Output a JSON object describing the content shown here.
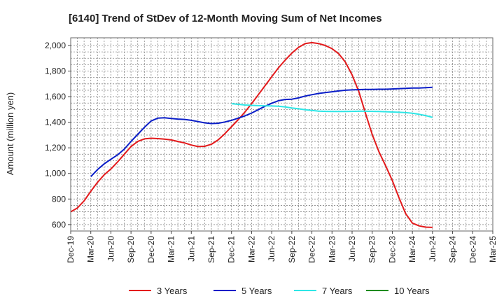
{
  "chart_data": {
    "type": "line",
    "title": "[6140]  Trend of StDev of 12-Month Moving Sum of Net Incomes",
    "ylabel": "Amount (million yen)",
    "xlabel": "",
    "ylim": [
      550,
      2060
    ],
    "y_ticks": [
      600,
      800,
      1000,
      1200,
      1400,
      1600,
      1800,
      2000
    ],
    "y_tick_labels": [
      "600",
      "800",
      "1,000",
      "1,200",
      "1,400",
      "1,600",
      "1,800",
      "2,000"
    ],
    "x_ticks": [
      "Dec-19",
      "Mar-20",
      "Jun-20",
      "Sep-20",
      "Dec-20",
      "Mar-21",
      "Jun-21",
      "Sep-21",
      "Dec-21",
      "Mar-22",
      "Jun-22",
      "Sep-22",
      "Dec-22",
      "Mar-23",
      "Jun-23",
      "Sep-23",
      "Dec-23",
      "Mar-24",
      "Jun-24",
      "Sep-24",
      "Dec-24",
      "Mar-25"
    ],
    "grid": true,
    "legend_position": "bottom",
    "series": [
      {
        "name": "3 Years",
        "color": "#e31a1c",
        "points": [
          [
            0,
            700
          ],
          [
            1,
            730
          ],
          [
            2,
            785
          ],
          [
            3,
            860
          ],
          [
            4,
            930
          ],
          [
            5,
            990
          ],
          [
            6,
            1035
          ],
          [
            7,
            1090
          ],
          [
            8,
            1150
          ],
          [
            9,
            1210
          ],
          [
            10,
            1250
          ],
          [
            11,
            1270
          ],
          [
            12,
            1275
          ],
          [
            13,
            1272
          ],
          [
            14,
            1268
          ],
          [
            15,
            1262
          ],
          [
            16,
            1250
          ],
          [
            17,
            1238
          ],
          [
            18,
            1222
          ],
          [
            19,
            1210
          ],
          [
            20,
            1212
          ],
          [
            21,
            1228
          ],
          [
            22,
            1262
          ],
          [
            23,
            1310
          ],
          [
            24,
            1365
          ],
          [
            25,
            1420
          ],
          [
            26,
            1480
          ],
          [
            27,
            1545
          ],
          [
            28,
            1615
          ],
          [
            29,
            1685
          ],
          [
            30,
            1755
          ],
          [
            31,
            1825
          ],
          [
            32,
            1885
          ],
          [
            33,
            1940
          ],
          [
            34,
            1985
          ],
          [
            35,
            2015
          ],
          [
            36,
            2022
          ],
          [
            37,
            2015
          ],
          [
            38,
            2000
          ],
          [
            39,
            1975
          ],
          [
            40,
            1935
          ],
          [
            41,
            1870
          ],
          [
            42,
            1770
          ],
          [
            43,
            1640
          ],
          [
            44,
            1470
          ],
          [
            45,
            1305
          ],
          [
            46,
            1170
          ],
          [
            47,
            1060
          ],
          [
            48,
            945
          ],
          [
            49,
            810
          ],
          [
            50,
            685
          ],
          [
            51,
            612
          ],
          [
            52,
            590
          ],
          [
            53,
            580
          ],
          [
            54,
            578
          ]
        ]
      },
      {
        "name": "5 Years",
        "color": "#0a1ec8",
        "points": [
          [
            3,
            975
          ],
          [
            4,
            1030
          ],
          [
            5,
            1075
          ],
          [
            6,
            1110
          ],
          [
            7,
            1145
          ],
          [
            8,
            1190
          ],
          [
            9,
            1250
          ],
          [
            10,
            1305
          ],
          [
            11,
            1360
          ],
          [
            12,
            1410
          ],
          [
            13,
            1432
          ],
          [
            14,
            1435
          ],
          [
            15,
            1430
          ],
          [
            16,
            1425
          ],
          [
            17,
            1422
          ],
          [
            18,
            1415
          ],
          [
            19,
            1405
          ],
          [
            20,
            1395
          ],
          [
            21,
            1390
          ],
          [
            22,
            1392
          ],
          [
            23,
            1402
          ],
          [
            24,
            1415
          ],
          [
            25,
            1432
          ],
          [
            26,
            1450
          ],
          [
            27,
            1472
          ],
          [
            28,
            1498
          ],
          [
            29,
            1525
          ],
          [
            30,
            1548
          ],
          [
            31,
            1568
          ],
          [
            32,
            1578
          ],
          [
            33,
            1580
          ],
          [
            34,
            1590
          ],
          [
            35,
            1605
          ],
          [
            36,
            1615
          ],
          [
            37,
            1625
          ],
          [
            38,
            1632
          ],
          [
            39,
            1638
          ],
          [
            40,
            1645
          ],
          [
            41,
            1650
          ],
          [
            42,
            1653
          ],
          [
            43,
            1655
          ],
          [
            44,
            1656
          ],
          [
            45,
            1657
          ],
          [
            46,
            1658
          ],
          [
            47,
            1658
          ],
          [
            48,
            1660
          ],
          [
            49,
            1663
          ],
          [
            50,
            1665
          ],
          [
            51,
            1667
          ],
          [
            52,
            1668
          ],
          [
            53,
            1670
          ],
          [
            54,
            1673
          ]
        ]
      },
      {
        "name": "7 Years",
        "color": "#2ee6e6",
        "points": [
          [
            24,
            1545
          ],
          [
            25,
            1540
          ],
          [
            26,
            1535
          ],
          [
            27,
            1532
          ],
          [
            28,
            1530
          ],
          [
            29,
            1528
          ],
          [
            30,
            1527
          ],
          [
            31,
            1525
          ],
          [
            32,
            1520
          ],
          [
            33,
            1512
          ],
          [
            34,
            1505
          ],
          [
            35,
            1498
          ],
          [
            36,
            1492
          ],
          [
            37,
            1487
          ],
          [
            38,
            1485
          ],
          [
            39,
            1484
          ],
          [
            40,
            1484
          ],
          [
            41,
            1484
          ],
          [
            42,
            1485
          ],
          [
            43,
            1486
          ],
          [
            44,
            1486
          ],
          [
            45,
            1485
          ],
          [
            46,
            1484
          ],
          [
            47,
            1482
          ],
          [
            48,
            1480
          ],
          [
            49,
            1478
          ],
          [
            50,
            1475
          ],
          [
            51,
            1470
          ],
          [
            52,
            1462
          ],
          [
            53,
            1452
          ],
          [
            54,
            1438
          ]
        ]
      },
      {
        "name": "10 Years",
        "color": "#1f8b1f",
        "points": []
      }
    ]
  }
}
